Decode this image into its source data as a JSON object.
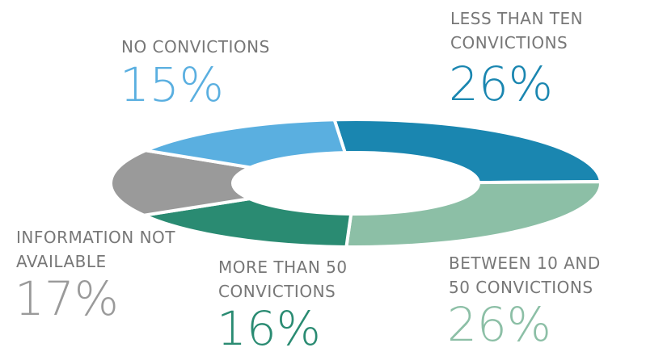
{
  "chart_data": {
    "type": "donut",
    "categories": [
      "LESS THAN TEN CONVICTIONS",
      "BETWEEN 10 AND 50 CONVICTIONS",
      "MORE THAN 50 CONVICTIONS",
      "INFORMATION NOT AVAILABLE",
      "NO CONVICTIONS"
    ],
    "values": [
      26,
      26,
      16,
      17,
      15
    ],
    "value_labels": [
      "26%",
      "26%",
      "16%",
      "17%",
      "15%"
    ],
    "colors": [
      "#1a86b0",
      "#8cbfa6",
      "#2a8b72",
      "#9a9a9a",
      "#5aafe0"
    ]
  }
}
